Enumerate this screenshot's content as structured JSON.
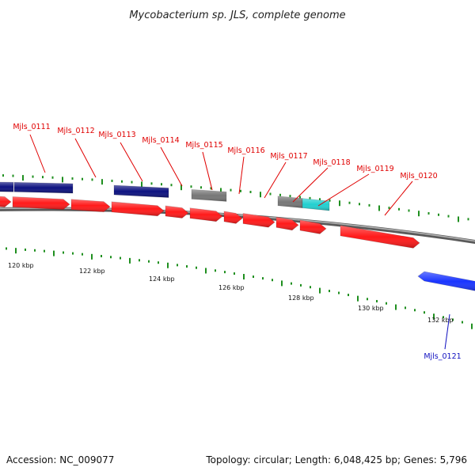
{
  "title": "Mycobacterium sp. JLS, complete genome",
  "footer": {
    "accession": "Accession: NC_009077",
    "topology": "Topology: circular; Length: 6,048,425 bp; Genes: 5,796"
  },
  "colors": {
    "backbone": "#8a8a8a",
    "tick": "#1f8f1f",
    "label_top": "#e00000",
    "label_bottom": "#1010c0",
    "red": "#ff1a1a",
    "navy": "#0d1280",
    "gray": "#777777",
    "cyan": "#22d0d0",
    "blue": "#1a35ff"
  },
  "tick_labels": [
    "120 kbp",
    "122 kbp",
    "124 kbp",
    "126 kbp",
    "128 kbp",
    "130 kbp",
    "132 kbp"
  ],
  "gene_labels": {
    "top": [
      "Mjls_0111",
      "Mjls_0112",
      "Mjls_0113",
      "Mjls_0114",
      "Mjls_0115",
      "Mjls_0116",
      "Mjls_0117",
      "Mjls_0118",
      "Mjls_0119",
      "Mjls_0120"
    ],
    "bottom": [
      "Mjls_0121"
    ]
  },
  "features": [
    {
      "lane": "outer",
      "color": "navy",
      "dir": "none"
    },
    {
      "lane": "outer",
      "color": "navy",
      "dir": "none"
    },
    {
      "lane": "outer",
      "color": "navy",
      "dir": "none"
    },
    {
      "lane": "outer",
      "color": "gray",
      "dir": "none"
    },
    {
      "lane": "outer",
      "color": "gray",
      "dir": "none"
    },
    {
      "lane": "outer",
      "color": "cyan",
      "dir": "none"
    },
    {
      "lane": "inner",
      "color": "red",
      "dir": "forward"
    },
    {
      "lane": "inner",
      "color": "red",
      "dir": "forward"
    },
    {
      "lane": "inner",
      "color": "red",
      "dir": "forward"
    },
    {
      "lane": "inner",
      "color": "red",
      "dir": "forward"
    },
    {
      "lane": "inner",
      "color": "red",
      "dir": "forward"
    },
    {
      "lane": "inner",
      "color": "red",
      "dir": "forward"
    },
    {
      "lane": "inner",
      "color": "red",
      "dir": "forward"
    },
    {
      "lane": "inner",
      "color": "red",
      "dir": "forward"
    },
    {
      "lane": "inner",
      "color": "red",
      "dir": "forward"
    },
    {
      "lane": "inner",
      "color": "red",
      "dir": "forward"
    },
    {
      "lane": "inner",
      "color": "red",
      "dir": "forward"
    },
    {
      "lane": "reverse",
      "color": "blue",
      "dir": "reverse"
    }
  ]
}
